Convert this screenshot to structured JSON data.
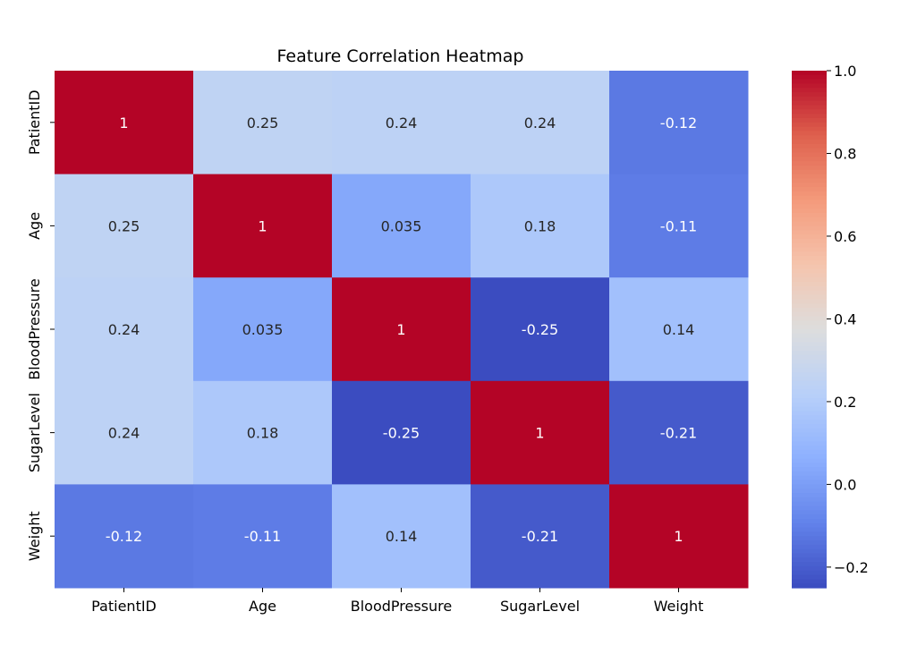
{
  "chart_data": {
    "type": "heatmap",
    "title": "Feature Correlation Heatmap",
    "rows": [
      "PatientID",
      "Age",
      "BloodPressure",
      "SugarLevel",
      "Weight"
    ],
    "cols": [
      "PatientID",
      "Age",
      "BloodPressure",
      "SugarLevel",
      "Weight"
    ],
    "values": [
      [
        1,
        0.25,
        0.24,
        0.24,
        -0.12
      ],
      [
        0.25,
        1,
        0.035,
        0.18,
        -0.11
      ],
      [
        0.24,
        0.035,
        1,
        -0.25,
        0.14
      ],
      [
        0.24,
        0.18,
        -0.25,
        1,
        -0.21
      ],
      [
        -0.12,
        -0.11,
        0.14,
        -0.21,
        1
      ]
    ],
    "value_labels": [
      [
        "1",
        "0.25",
        "0.24",
        "0.24",
        "-0.12"
      ],
      [
        "0.25",
        "1",
        "0.035",
        "0.18",
        "-0.11"
      ],
      [
        "0.24",
        "0.035",
        "1",
        "-0.25",
        "0.14"
      ],
      [
        "0.24",
        "0.18",
        "-0.25",
        "1",
        "-0.21"
      ],
      [
        "-0.12",
        "-0.11",
        "0.14",
        "-0.21",
        "1"
      ]
    ],
    "colormap": "coolwarm",
    "vmin": -0.25,
    "vmax": 1.0,
    "colorbar_ticks": [
      1.0,
      0.8,
      0.6,
      0.4,
      0.2,
      0.0,
      -0.2
    ],
    "colorbar_tick_labels": [
      "1.0",
      "0.8",
      "0.6",
      "0.4",
      "0.2",
      "0.0",
      "−0.2"
    ]
  }
}
